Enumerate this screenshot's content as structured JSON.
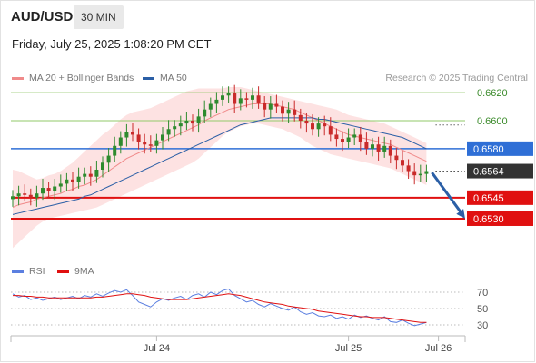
{
  "header": {
    "symbol": "AUD/USD",
    "timeframe": "30 MIN",
    "datetime": "Friday, July 25, 2025 1:08:20 PM CET"
  },
  "legend": {
    "ma20_label": "MA 20 + Bollinger Bands",
    "ma50_label": "MA 50",
    "credit": "Research © 2025 Trading Central",
    "rsi_label": "RSI",
    "rsi_ma_label": "9MA"
  },
  "colors": {
    "up_candle": "#2e8b2e",
    "down_candle": "#c92a2a",
    "ma20": "#f08a8a",
    "bollinger_fill": "#fde0e0",
    "ma50": "#2b5fa6",
    "support": "#e01010",
    "pivot": "#2f6fd6",
    "resistance": "#92c96a",
    "current_price_bg": "#333333",
    "rsi": "#5b7fe0",
    "rsi_ma": "#e01010",
    "arrow": "#2b5fa6"
  },
  "chart_data": [
    {
      "type": "candlestick",
      "title": "AUD/USD 30 MIN",
      "ylim": [
        0.6506,
        0.6624
      ],
      "x_ticks": [
        {
          "index": 24,
          "label": "Jul 24"
        },
        {
          "index": 56,
          "label": "Jul 25"
        },
        {
          "index": 71,
          "label": "Jul 26"
        }
      ],
      "key_levels": [
        {
          "value": 0.662,
          "label": "0.6620",
          "role": "resistance"
        },
        {
          "value": 0.66,
          "label": "0.6600",
          "role": "resistance"
        },
        {
          "value": 0.658,
          "label": "0.6580",
          "role": "pivot"
        },
        {
          "value": 0.6564,
          "label": "0.6564",
          "role": "current"
        },
        {
          "value": 0.6545,
          "label": "0.6545",
          "role": "support"
        },
        {
          "value": 0.653,
          "label": "0.6530",
          "role": "support"
        }
      ],
      "forecast_arrow": {
        "from": 0.6563,
        "to": 0.653
      },
      "closes": [
        0.6546,
        0.6548,
        0.6547,
        0.6545,
        0.6548,
        0.6552,
        0.655,
        0.6553,
        0.6555,
        0.6558,
        0.6556,
        0.656,
        0.6562,
        0.656,
        0.6565,
        0.657,
        0.6575,
        0.6582,
        0.6588,
        0.6592,
        0.659,
        0.6585,
        0.6583,
        0.6582,
        0.6586,
        0.659,
        0.6594,
        0.6596,
        0.6598,
        0.66,
        0.6598,
        0.6603,
        0.6608,
        0.6612,
        0.6615,
        0.6618,
        0.662,
        0.6612,
        0.6616,
        0.6615,
        0.6618,
        0.6613,
        0.6608,
        0.6612,
        0.661,
        0.6605,
        0.6608,
        0.6604,
        0.66,
        0.6598,
        0.6594,
        0.6598,
        0.6596,
        0.659,
        0.6587,
        0.6585,
        0.6588,
        0.659,
        0.6585,
        0.658,
        0.6583,
        0.6578,
        0.6582,
        0.6575,
        0.6572,
        0.6568,
        0.6564,
        0.6561,
        0.6562,
        0.6564
      ],
      "ma20": [
        0.6538,
        0.654,
        0.6541,
        0.6542,
        0.6544,
        0.6545,
        0.6546,
        0.6547,
        0.6548,
        0.655,
        0.6551,
        0.6553,
        0.6554,
        0.6556,
        0.6558,
        0.6561,
        0.6564,
        0.6567,
        0.657,
        0.6573,
        0.6575,
        0.6577,
        0.6579,
        0.6581,
        0.6583,
        0.6585,
        0.6587,
        0.6589,
        0.6591,
        0.6593,
        0.6595,
        0.6597,
        0.66,
        0.6602,
        0.6604,
        0.6606,
        0.6608,
        0.6609,
        0.661,
        0.6611,
        0.6612,
        0.6612,
        0.6612,
        0.6612,
        0.6611,
        0.661,
        0.6609,
        0.6608,
        0.6606,
        0.6604,
        0.6602,
        0.66,
        0.6598,
        0.6596,
        0.6594,
        0.6592,
        0.659,
        0.6589,
        0.6588,
        0.6587,
        0.6586,
        0.6585,
        0.6584,
        0.6583,
        0.6581,
        0.6579,
        0.6577,
        0.6575,
        0.6573,
        0.6571
      ],
      "bollinger_upper": [
        0.6565,
        0.6564,
        0.6562,
        0.656,
        0.6558,
        0.6559,
        0.6561,
        0.6562,
        0.6564,
        0.6567,
        0.657,
        0.6574,
        0.6578,
        0.6582,
        0.6586,
        0.659,
        0.6593,
        0.6597,
        0.6601,
        0.6604,
        0.6606,
        0.6607,
        0.6608,
        0.6609,
        0.6611,
        0.6613,
        0.6615,
        0.6617,
        0.6619,
        0.6621,
        0.6622,
        0.6623,
        0.6623,
        0.6623,
        0.6623,
        0.6623,
        0.6624,
        0.6624,
        0.6624,
        0.6623,
        0.6622,
        0.6621,
        0.662,
        0.6619,
        0.6618,
        0.6617,
        0.6616,
        0.6615,
        0.6614,
        0.6613,
        0.6612,
        0.6611,
        0.661,
        0.6609,
        0.6608,
        0.6606,
        0.6604,
        0.6603,
        0.6602,
        0.6601,
        0.66,
        0.6599,
        0.6598,
        0.6596,
        0.6594,
        0.6592,
        0.659,
        0.6588,
        0.6586,
        0.6584
      ],
      "bollinger_lower": [
        0.6509,
        0.6513,
        0.6517,
        0.6521,
        0.6525,
        0.6528,
        0.653,
        0.6531,
        0.6532,
        0.6533,
        0.6534,
        0.6535,
        0.6536,
        0.6537,
        0.6538,
        0.654,
        0.6542,
        0.6544,
        0.6546,
        0.6548,
        0.655,
        0.6552,
        0.6554,
        0.6556,
        0.6558,
        0.656,
        0.6562,
        0.6564,
        0.6566,
        0.6568,
        0.657,
        0.6573,
        0.6577,
        0.6581,
        0.6585,
        0.6589,
        0.6592,
        0.6594,
        0.6596,
        0.6597,
        0.6598,
        0.6598,
        0.6597,
        0.6596,
        0.6595,
        0.6594,
        0.6592,
        0.659,
        0.6588,
        0.6585,
        0.6582,
        0.658,
        0.6578,
        0.6576,
        0.6575,
        0.6574,
        0.6573,
        0.6572,
        0.6571,
        0.657,
        0.6569,
        0.6568,
        0.6567,
        0.6566,
        0.6564,
        0.6562,
        0.656,
        0.6558,
        0.6556,
        0.6554
      ],
      "ma50": [
        0.6533,
        0.6534,
        0.6535,
        0.6536,
        0.6537,
        0.6538,
        0.6539,
        0.654,
        0.6541,
        0.6542,
        0.6543,
        0.6544,
        0.6546,
        0.6547,
        0.6549,
        0.6551,
        0.6553,
        0.6555,
        0.6557,
        0.6559,
        0.6561,
        0.6563,
        0.6565,
        0.6567,
        0.6569,
        0.6571,
        0.6573,
        0.6575,
        0.6577,
        0.6579,
        0.6581,
        0.6583,
        0.6585,
        0.6587,
        0.6589,
        0.6591,
        0.6593,
        0.6595,
        0.6597,
        0.6598,
        0.6599,
        0.66,
        0.6601,
        0.6602,
        0.6602,
        0.6602,
        0.6602,
        0.6602,
        0.6602,
        0.6602,
        0.6602,
        0.6601,
        0.6601,
        0.66,
        0.6599,
        0.6598,
        0.6597,
        0.6596,
        0.6595,
        0.6594,
        0.6593,
        0.6592,
        0.6591,
        0.659,
        0.6589,
        0.6588,
        0.6586,
        0.6584,
        0.6582,
        0.658
      ]
    },
    {
      "type": "line",
      "title": "RSI",
      "ylim": [
        20,
        80
      ],
      "y_ticks": [
        70,
        50,
        30
      ],
      "series": [
        {
          "name": "RSI",
          "values": [
            68,
            64,
            66,
            61,
            63,
            60,
            62,
            64,
            61,
            63,
            65,
            62,
            66,
            64,
            68,
            65,
            69,
            72,
            70,
            73,
            66,
            58,
            55,
            52,
            58,
            62,
            60,
            63,
            65,
            61,
            66,
            68,
            64,
            70,
            67,
            72,
            74,
            66,
            62,
            58,
            60,
            55,
            52,
            56,
            53,
            50,
            48,
            52,
            46,
            43,
            45,
            41,
            40,
            42,
            38,
            40,
            37,
            42,
            39,
            41,
            38,
            36,
            40,
            34,
            33,
            36,
            32,
            29,
            31,
            33
          ]
        },
        {
          "name": "9MA",
          "values": [
            66,
            66,
            65,
            65,
            64,
            64,
            63,
            63,
            63,
            63,
            63,
            63,
            63,
            63,
            64,
            64,
            65,
            66,
            67,
            68,
            68,
            67,
            66,
            64,
            63,
            62,
            61,
            61,
            61,
            61,
            62,
            63,
            64,
            65,
            66,
            67,
            68,
            67,
            66,
            64,
            62,
            60,
            58,
            57,
            56,
            55,
            53,
            52,
            51,
            50,
            49,
            47,
            46,
            45,
            44,
            43,
            42,
            41,
            40,
            40,
            39,
            39,
            39,
            38,
            37,
            36,
            35,
            34,
            33,
            33
          ]
        }
      ]
    }
  ]
}
